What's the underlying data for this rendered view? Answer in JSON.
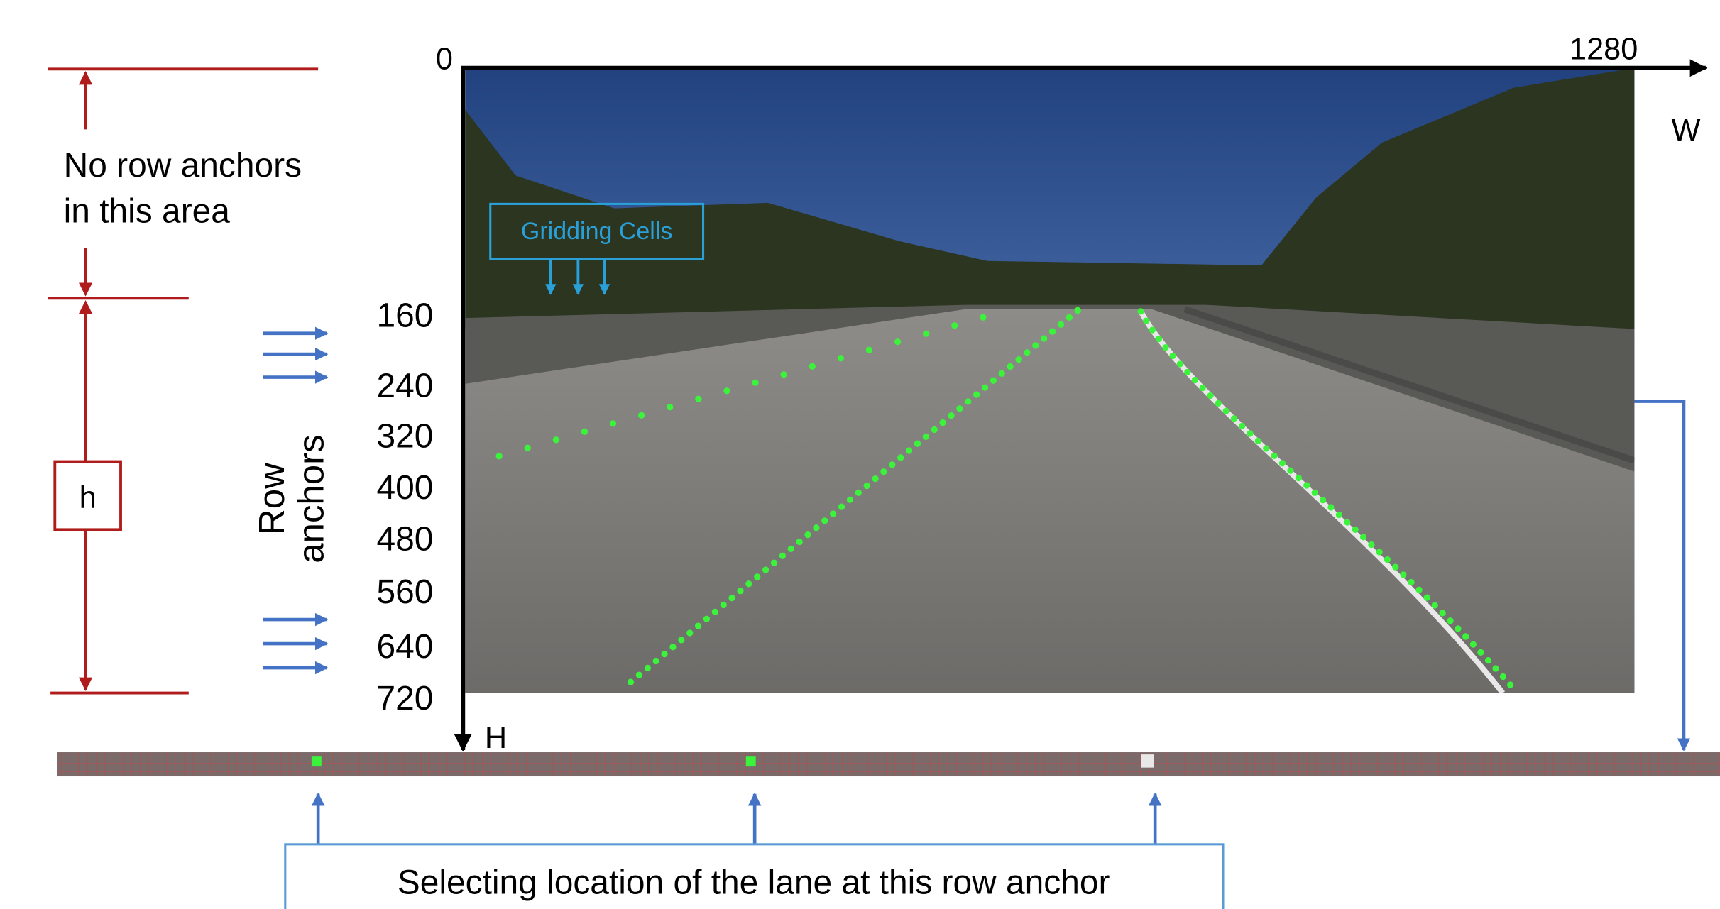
{
  "axis": {
    "origin": 0,
    "width_max": 1280,
    "width_label": "W",
    "height_label": "H"
  },
  "annotations": {
    "no_anchor_lines": [
      "No row anchors",
      "in this area"
    ],
    "h_label": "h",
    "row_anchors_title": [
      "Row",
      "anchors"
    ],
    "gridding_cells": "Gridding Cells",
    "selection_caption": "Selecting location of the lane at this row anchor"
  },
  "row_anchors": [
    160,
    240,
    320,
    400,
    480,
    560,
    640,
    720
  ]
}
